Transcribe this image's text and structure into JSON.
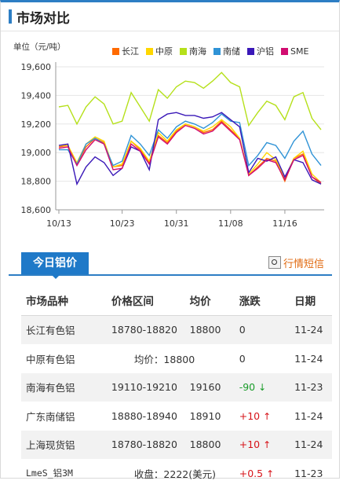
{
  "header": {
    "title": "市场对比"
  },
  "chart_data": {
    "type": "line",
    "ylabel": "单位（元/吨）",
    "ylim": [
      18600,
      19600
    ],
    "yticks": [
      "18,600",
      "18,800",
      "19,000",
      "19,200",
      "19,400",
      "19,600"
    ],
    "xticks": [
      {
        "label": "10/13",
        "index": 0
      },
      {
        "label": "10/23",
        "index": 7
      },
      {
        "label": "10/31",
        "index": 13
      },
      {
        "label": "11/08",
        "index": 19
      },
      {
        "label": "11/16",
        "index": 25
      }
    ],
    "series": [
      {
        "name": "长江",
        "color": "#ff6a00",
        "values": [
          19040,
          19050,
          18920,
          19040,
          19100,
          19070,
          18900,
          18910,
          19080,
          19020,
          18930,
          19120,
          19070,
          19150,
          19200,
          19180,
          19140,
          19160,
          19220,
          19160,
          19100,
          18840,
          18900,
          18960,
          18940,
          18800,
          18960,
          18990,
          18830,
          18780
        ]
      },
      {
        "name": "中原",
        "color": "#ffd700",
        "values": [
          19050,
          19050,
          18930,
          19060,
          19110,
          19080,
          18900,
          18920,
          19080,
          19030,
          18940,
          19140,
          19080,
          19160,
          19200,
          19180,
          19150,
          19180,
          19230,
          19180,
          19100,
          18850,
          18920,
          19000,
          18950,
          18820,
          18960,
          19010,
          18850,
          18790
        ]
      },
      {
        "name": "南海",
        "color": "#b5e01a",
        "values": [
          19320,
          19330,
          19200,
          19320,
          19390,
          19340,
          19200,
          19220,
          19420,
          19320,
          19220,
          19440,
          19380,
          19460,
          19500,
          19490,
          19450,
          19500,
          19560,
          19490,
          19460,
          19190,
          19280,
          19360,
          19330,
          19230,
          19390,
          19420,
          19240,
          19160
        ]
      },
      {
        "name": "南储",
        "color": "#2f93d6",
        "values": [
          19020,
          19020,
          18920,
          19060,
          19100,
          19060,
          18910,
          18940,
          19120,
          19060,
          18980,
          19160,
          19100,
          19180,
          19220,
          19200,
          19170,
          19210,
          19270,
          19220,
          19210,
          18910,
          18980,
          19070,
          19050,
          18960,
          19080,
          19150,
          18990,
          18910
        ]
      },
      {
        "name": "沪铝",
        "color": "#3a18b8",
        "values": [
          19050,
          19060,
          18780,
          18900,
          18970,
          18930,
          18840,
          18890,
          19040,
          19010,
          18880,
          19230,
          19270,
          19280,
          19260,
          19260,
          19240,
          19250,
          19280,
          19230,
          19180,
          18860,
          18960,
          18940,
          18970,
          18830,
          18950,
          18930,
          18810,
          18780
        ]
      },
      {
        "name": "SME",
        "color": "#d10c70",
        "values": [
          19030,
          19040,
          18910,
          19020,
          19090,
          19060,
          18880,
          18890,
          19060,
          19010,
          18920,
          19110,
          19060,
          19140,
          19190,
          19170,
          19130,
          19150,
          19210,
          19150,
          19090,
          18840,
          18890,
          18950,
          18930,
          18810,
          18950,
          18980,
          18830,
          18790
        ]
      }
    ]
  },
  "tab": {
    "label": "今日铝价"
  },
  "quick_link": {
    "label": "行情短信",
    "icon": "search-icon"
  },
  "table": {
    "headers": [
      "市场品种",
      "价格区间",
      "均价",
      "涨跌",
      "日期"
    ],
    "rows": [
      {
        "name": "长江有色铝",
        "range": "18780-18820",
        "avg": "18800",
        "change": "0",
        "dir": "none",
        "date": "11-24"
      },
      {
        "name": "中原有色铝",
        "range_full": "均价：18800",
        "change": "0",
        "dir": "none",
        "date": "11-24"
      },
      {
        "name": "南海有色铝",
        "range": "19110-19210",
        "avg": "19160",
        "change": "-90",
        "dir": "down",
        "date": "11-23"
      },
      {
        "name": "广东南储铝",
        "range": "18880-18940",
        "avg": "18910",
        "change": "+10",
        "dir": "up",
        "date": "11-24"
      },
      {
        "name": "上海现货铝",
        "range": "18780-18820",
        "avg": "18800",
        "change": "+10",
        "dir": "up",
        "date": "11-24"
      },
      {
        "name": "LmeS_铝3M",
        "range_full": "收盘：2222(美元)",
        "change": "+0.5",
        "dir": "up",
        "date": "11-23"
      }
    ],
    "arrow_up": "↑",
    "arrow_down": "↓"
  }
}
